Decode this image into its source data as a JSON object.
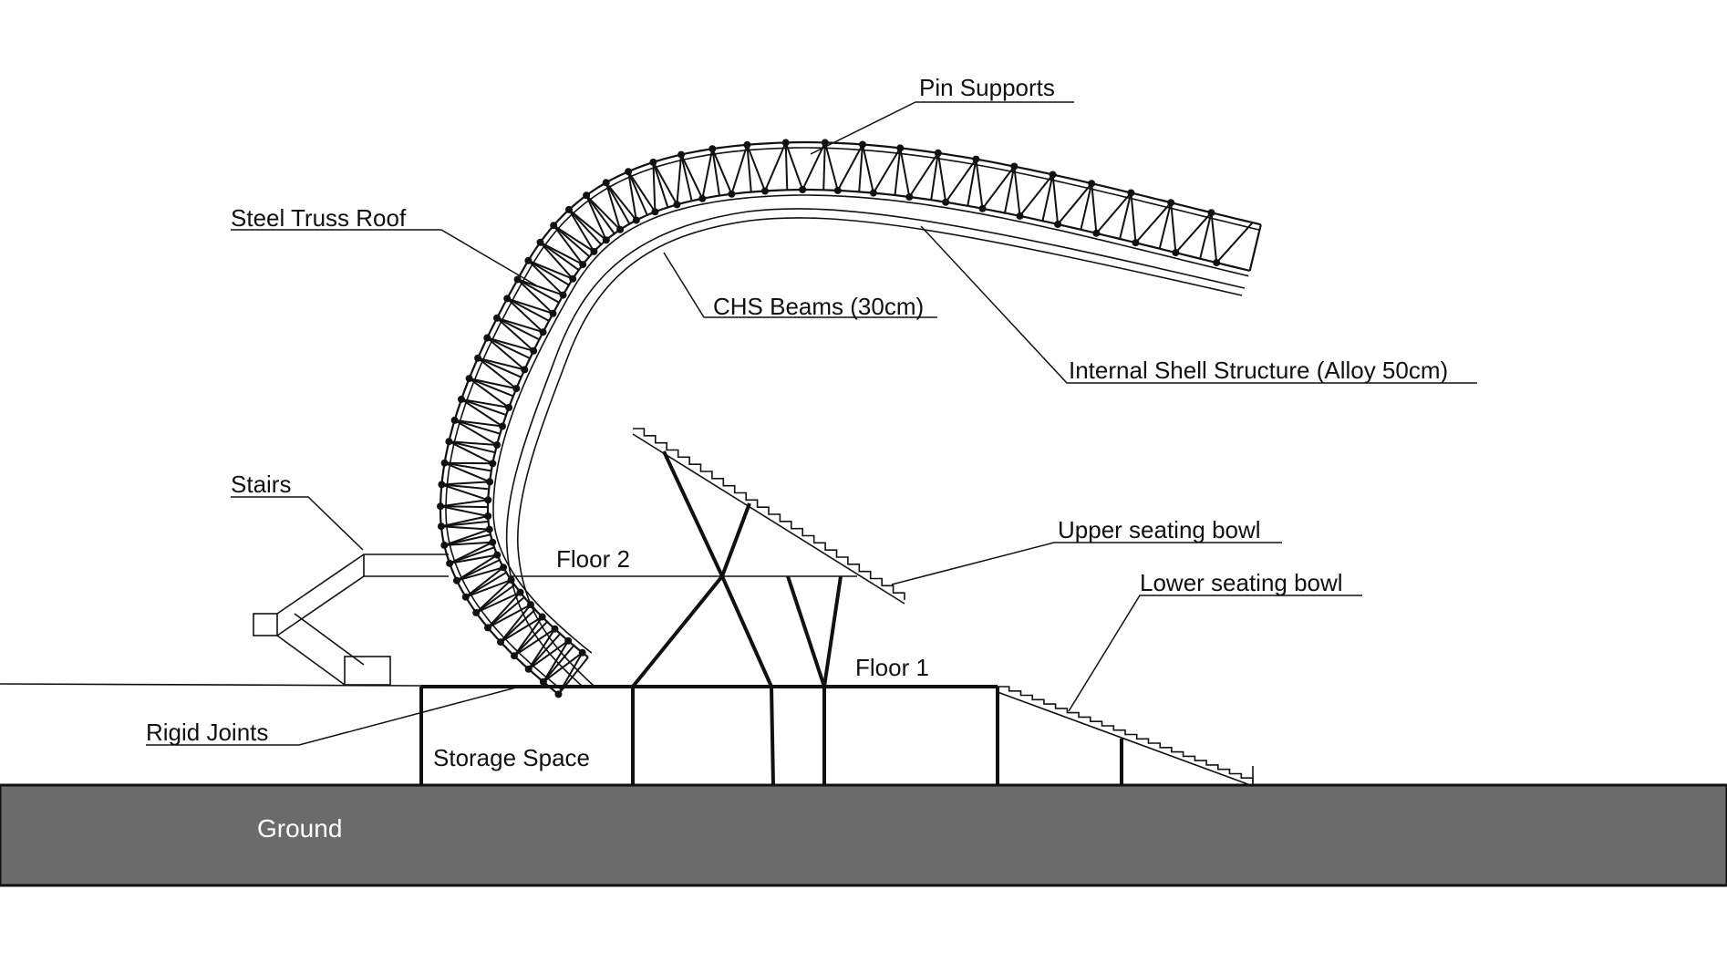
{
  "labels": {
    "pin_supports": "Pin Supports",
    "steel_truss_roof": "Steel Truss Roof",
    "chs_beams": "CHS Beams (30cm)",
    "internal_shell": "Internal Shell Structure (Alloy 50cm)",
    "stairs": "Stairs",
    "upper_seating_bowl": "Upper seating bowl",
    "floor_2": "Floor 2",
    "lower_seating_bowl": "Lower seating bowl",
    "floor_1": "Floor 1",
    "rigid_joints": "Rigid Joints",
    "storage_space": "Storage Space",
    "ground": "Ground"
  },
  "colors": {
    "ground_fill": "#6b6b6b",
    "line": "#111111",
    "background": "#ffffff"
  }
}
